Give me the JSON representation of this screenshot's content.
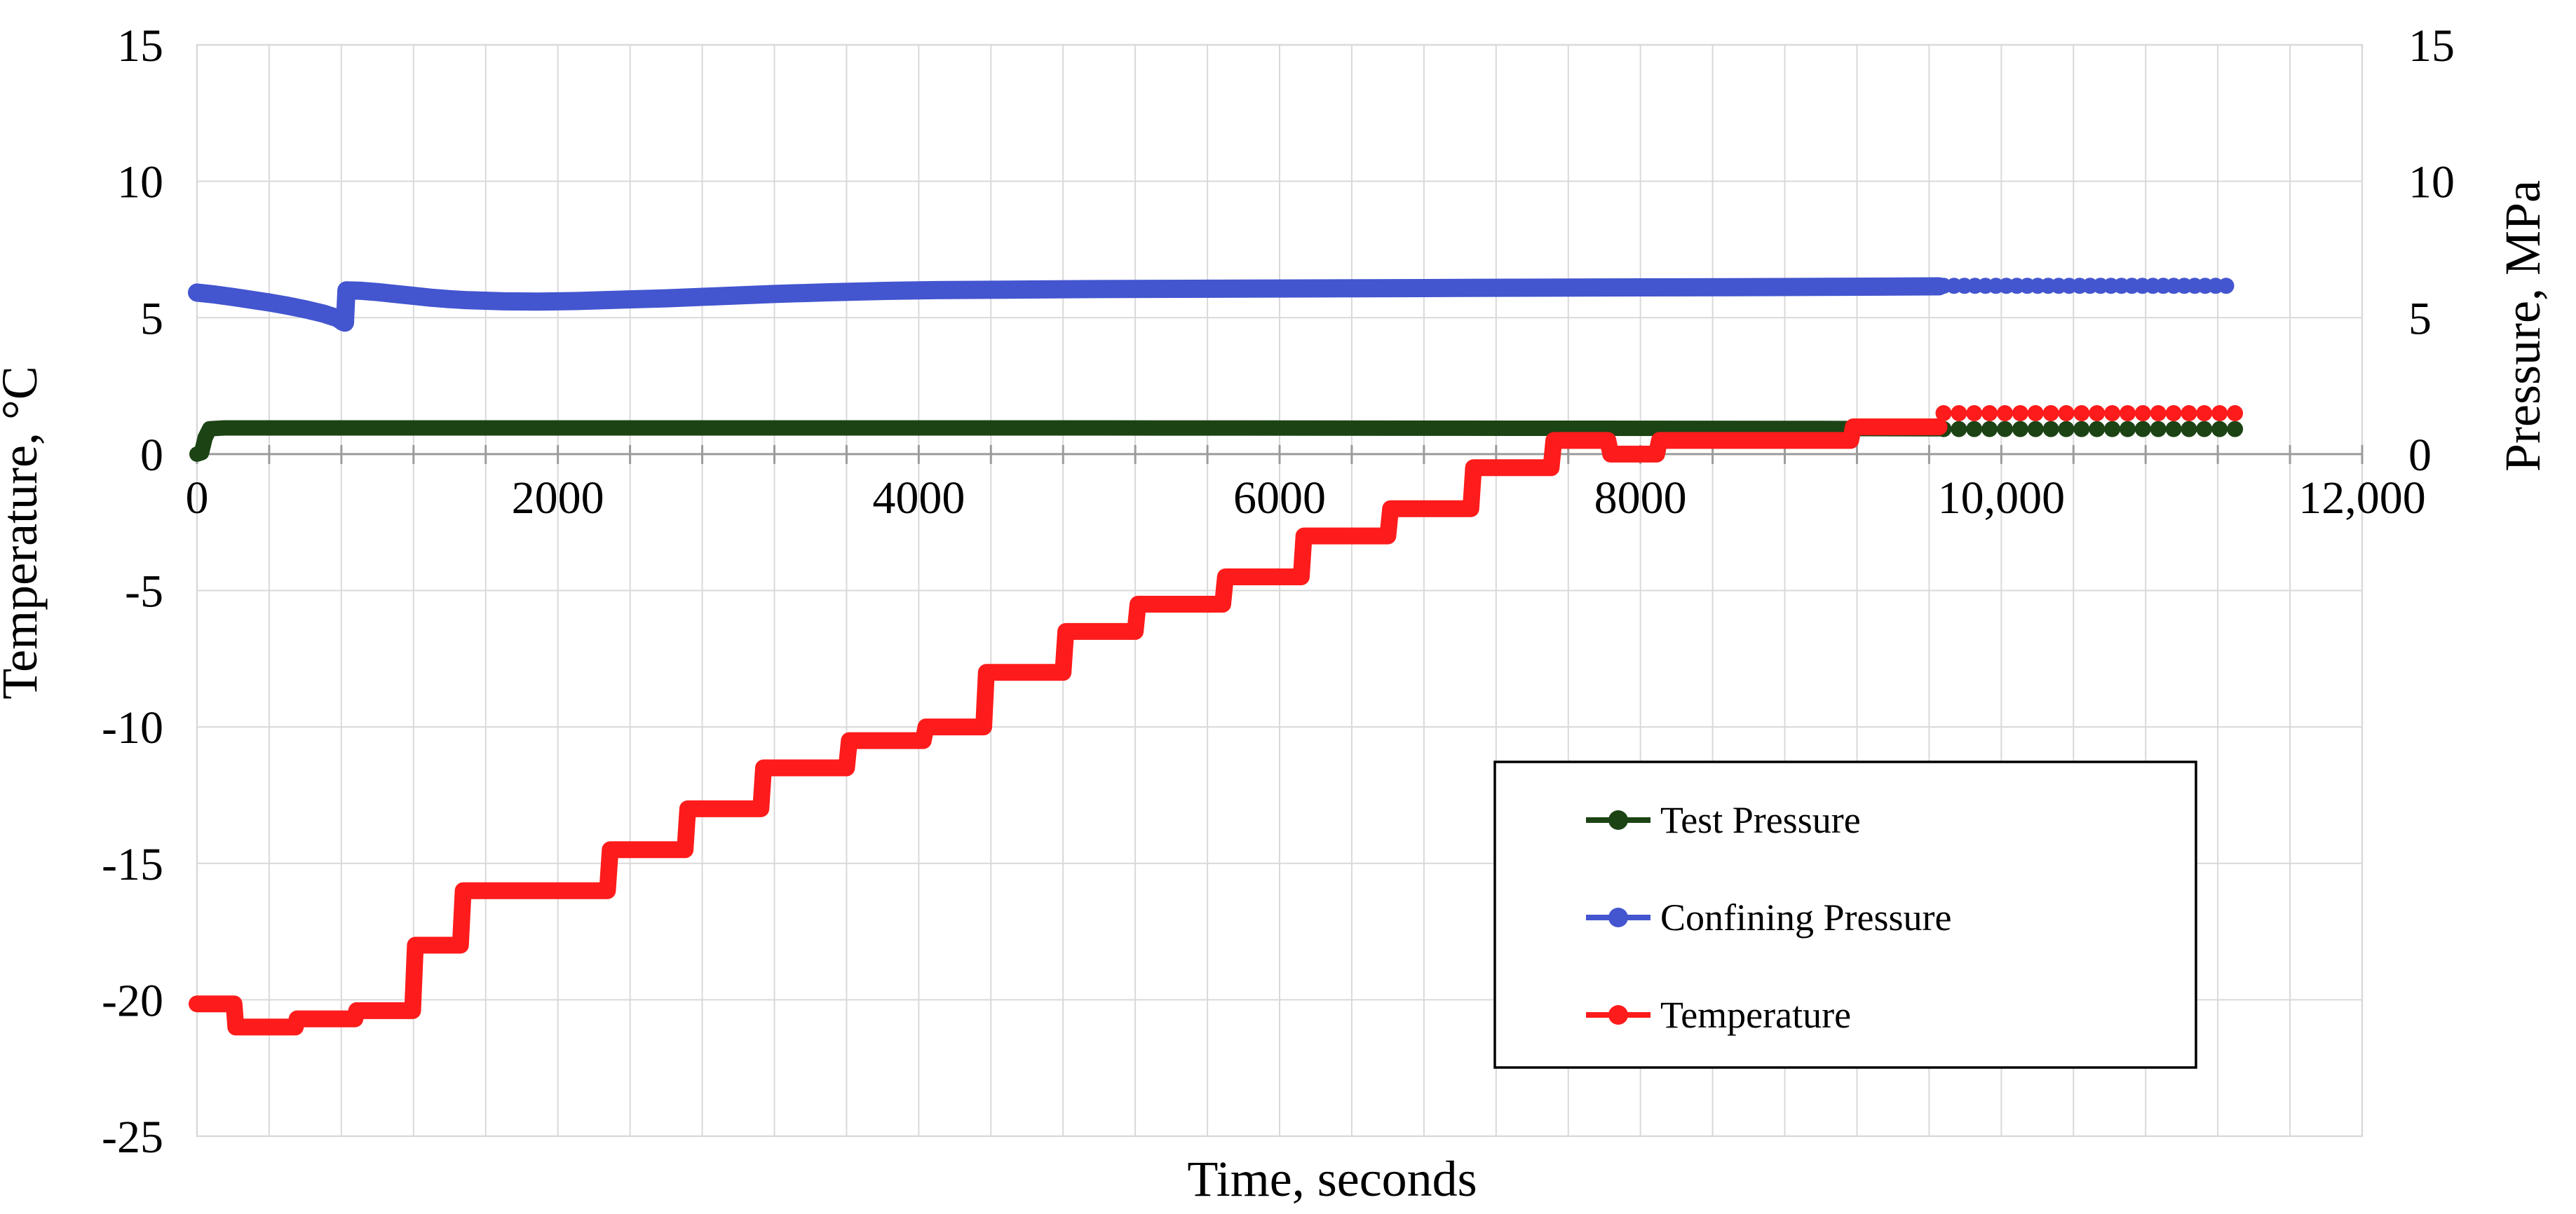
{
  "chart_data": {
    "type": "line",
    "title": "",
    "x_axis": {
      "label": "Time, seconds",
      "min": 0,
      "max": 12000,
      "minor_gridline_interval": 400,
      "ticks": [
        {
          "t": 0,
          "label": "0"
        },
        {
          "t": 2000,
          "label": "2000"
        },
        {
          "t": 4000,
          "label": "4000"
        },
        {
          "t": 6000,
          "label": "6000"
        },
        {
          "t": 8000,
          "label": "8000"
        },
        {
          "t": 10000,
          "label": "10,000"
        },
        {
          "t": 12000,
          "label": "12,000"
        }
      ]
    },
    "y_left_axis": {
      "label": "Temperature, °C",
      "min": -25,
      "max": 15,
      "ticks": [
        {
          "v": 15,
          "label": "15"
        },
        {
          "v": 10,
          "label": "10"
        },
        {
          "v": 5,
          "label": "5"
        },
        {
          "v": 0,
          "label": "0"
        },
        {
          "v": -5,
          "label": "-5"
        },
        {
          "v": -10,
          "label": "-10"
        },
        {
          "v": -15,
          "label": "-15"
        },
        {
          "v": -20,
          "label": "-20"
        },
        {
          "v": -25,
          "label": "-25"
        }
      ]
    },
    "y_right_axis": {
      "label": "Pressure, MPa",
      "ticks": [
        {
          "v": 15,
          "label": "15"
        },
        {
          "v": 10,
          "label": "10"
        },
        {
          "v": 5,
          "label": "5"
        },
        {
          "v": 0,
          "label": "0"
        }
      ]
    },
    "grid": {
      "horizontal": true,
      "vertical_minor": true,
      "color": "#d9d9d9"
    },
    "axis_line_color": "#9b9b9b",
    "series": [
      {
        "name": "Test Pressure",
        "axis": "right",
        "color": "#1c4314",
        "unit": "MPa",
        "solid": [
          [
            0,
            0.0
          ],
          [
            25,
            0.05
          ],
          [
            45,
            0.6
          ],
          [
            70,
            0.93
          ],
          [
            150,
            0.96
          ],
          [
            1000,
            0.96
          ],
          [
            3000,
            0.96
          ],
          [
            5000,
            0.96
          ],
          [
            7000,
            0.95
          ],
          [
            9000,
            0.94
          ],
          [
            9655,
            0.93
          ]
        ],
        "dots": {
          "from": 9680,
          "to": 11320,
          "step": 85,
          "value": 0.92
        }
      },
      {
        "name": "Confining Pressure",
        "axis": "right",
        "color": "#4355cf",
        "unit": "MPa",
        "solid": [
          [
            0,
            5.92
          ],
          [
            100,
            5.85
          ],
          [
            200,
            5.76
          ],
          [
            300,
            5.66
          ],
          [
            400,
            5.56
          ],
          [
            500,
            5.44
          ],
          [
            600,
            5.31
          ],
          [
            700,
            5.15
          ],
          [
            780,
            4.98
          ],
          [
            810,
            4.84
          ],
          [
            820,
            4.82
          ],
          [
            828,
            6.0
          ],
          [
            900,
            5.99
          ],
          [
            1000,
            5.94
          ],
          [
            1100,
            5.87
          ],
          [
            1200,
            5.8
          ],
          [
            1300,
            5.73
          ],
          [
            1400,
            5.68
          ],
          [
            1500,
            5.64
          ],
          [
            1700,
            5.6
          ],
          [
            1900,
            5.59
          ],
          [
            2100,
            5.61
          ],
          [
            2300,
            5.65
          ],
          [
            2600,
            5.71
          ],
          [
            2900,
            5.79
          ],
          [
            3200,
            5.87
          ],
          [
            3500,
            5.93
          ],
          [
            3800,
            5.98
          ],
          [
            4100,
            6.01
          ],
          [
            4500,
            6.03
          ],
          [
            5000,
            6.05
          ],
          [
            5500,
            6.06
          ],
          [
            6000,
            6.07
          ],
          [
            6500,
            6.08
          ],
          [
            7000,
            6.09
          ],
          [
            7500,
            6.1
          ],
          [
            8000,
            6.11
          ],
          [
            8500,
            6.12
          ],
          [
            9000,
            6.13
          ],
          [
            9655,
            6.15
          ]
        ],
        "dots": {
          "from": 9680,
          "to": 11280,
          "step": 58,
          "value": 6.17
        }
      },
      {
        "name": "Temperature",
        "axis": "left",
        "color": "#fe1b1b",
        "unit": "°C",
        "solid": [
          [
            0,
            -20.15
          ],
          [
            205,
            -20.15
          ],
          [
            215,
            -21.0
          ],
          [
            545,
            -21.0
          ],
          [
            555,
            -20.7
          ],
          [
            875,
            -20.7
          ],
          [
            885,
            -20.4
          ],
          [
            1195,
            -20.4
          ],
          [
            1210,
            -18.0
          ],
          [
            1460,
            -18.0
          ],
          [
            1475,
            -16.0
          ],
          [
            2275,
            -16.0
          ],
          [
            2290,
            -14.5
          ],
          [
            2705,
            -14.5
          ],
          [
            2720,
            -13.0
          ],
          [
            3125,
            -13.0
          ],
          [
            3140,
            -11.5
          ],
          [
            3600,
            -11.5
          ],
          [
            3615,
            -10.5
          ],
          [
            4025,
            -10.5
          ],
          [
            4040,
            -10.0
          ],
          [
            4360,
            -10.0
          ],
          [
            4375,
            -8.0
          ],
          [
            4800,
            -8.0
          ],
          [
            4815,
            -6.5
          ],
          [
            5200,
            -6.5
          ],
          [
            5215,
            -5.5
          ],
          [
            5685,
            -5.5
          ],
          [
            5700,
            -4.5
          ],
          [
            6120,
            -4.5
          ],
          [
            6135,
            -3.0
          ],
          [
            6600,
            -3.0
          ],
          [
            6615,
            -2.0
          ],
          [
            7060,
            -2.0
          ],
          [
            7075,
            -0.5
          ],
          [
            7505,
            -0.5
          ],
          [
            7520,
            0.5
          ],
          [
            7820,
            0.5
          ],
          [
            7835,
            0.0
          ],
          [
            8090,
            0.0
          ],
          [
            8105,
            0.5
          ],
          [
            9165,
            0.5
          ],
          [
            9180,
            1.0
          ],
          [
            9655,
            1.0
          ]
        ],
        "dots": {
          "from": 9680,
          "to": 11320,
          "step": 85,
          "value": 1.5
        }
      }
    ],
    "legend": {
      "position": "inside-right-bottom",
      "entries": [
        {
          "label": "Test Pressure",
          "color": "#1c4314"
        },
        {
          "label": "Confining Pressure",
          "color": "#4355cf"
        },
        {
          "label": "Temperature",
          "color": "#fe1b1b"
        }
      ]
    }
  }
}
